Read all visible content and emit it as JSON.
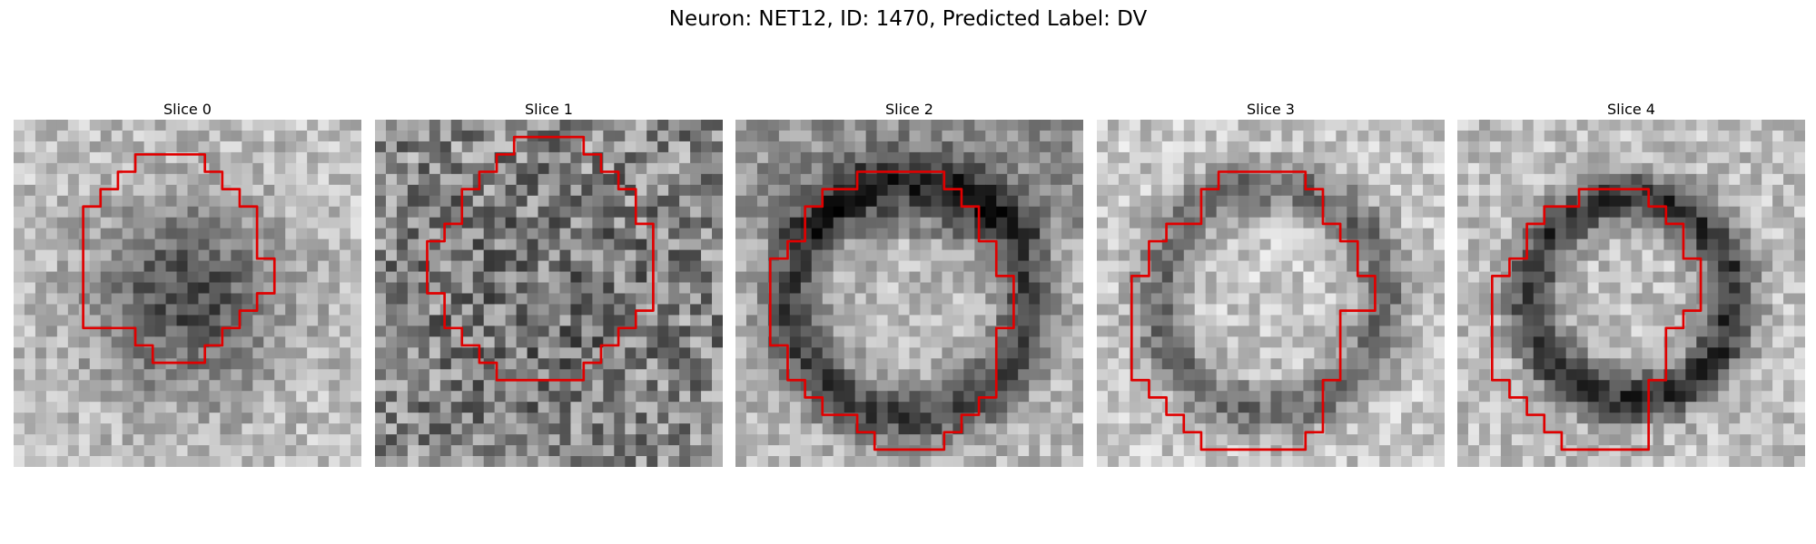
{
  "figure": {
    "title": "Neuron: NET12, ID: 1470, Predicted Label: DV",
    "contour_color": "#e00000",
    "colormap": "gray"
  },
  "panels": [
    {
      "title": "Slice 0",
      "pattern": "dark-center",
      "contour": [
        [
          8,
          2
        ],
        [
          11,
          2
        ],
        [
          11,
          3
        ],
        [
          12,
          3
        ],
        [
          12,
          4
        ],
        [
          13,
          4
        ],
        [
          13,
          5
        ],
        [
          14,
          5
        ],
        [
          14,
          8
        ],
        [
          15,
          8
        ],
        [
          15,
          10
        ],
        [
          14,
          10
        ],
        [
          14,
          11
        ],
        [
          13,
          11
        ],
        [
          13,
          12
        ],
        [
          12,
          12
        ],
        [
          12,
          13
        ],
        [
          11,
          13
        ],
        [
          11,
          14
        ],
        [
          8,
          14
        ],
        [
          8,
          13
        ],
        [
          7,
          13
        ],
        [
          7,
          12
        ],
        [
          4,
          12
        ],
        [
          4,
          5
        ],
        [
          5,
          5
        ],
        [
          5,
          4
        ],
        [
          6,
          4
        ],
        [
          6,
          3
        ],
        [
          7,
          3
        ],
        [
          7,
          2
        ]
      ]
    },
    {
      "title": "Slice 1",
      "pattern": "speckle",
      "contour": [
        [
          8,
          1
        ],
        [
          12,
          1
        ],
        [
          12,
          2
        ],
        [
          13,
          2
        ],
        [
          13,
          3
        ],
        [
          14,
          3
        ],
        [
          14,
          4
        ],
        [
          15,
          4
        ],
        [
          15,
          6
        ],
        [
          16,
          6
        ],
        [
          16,
          11
        ],
        [
          15,
          11
        ],
        [
          15,
          12
        ],
        [
          14,
          12
        ],
        [
          14,
          13
        ],
        [
          13,
          13
        ],
        [
          13,
          14
        ],
        [
          12,
          14
        ],
        [
          12,
          15
        ],
        [
          7,
          15
        ],
        [
          7,
          14
        ],
        [
          6,
          14
        ],
        [
          6,
          13
        ],
        [
          5,
          13
        ],
        [
          5,
          12
        ],
        [
          4,
          12
        ],
        [
          4,
          10
        ],
        [
          3,
          10
        ],
        [
          3,
          7
        ],
        [
          4,
          7
        ],
        [
          4,
          6
        ],
        [
          5,
          6
        ],
        [
          5,
          4
        ],
        [
          6,
          4
        ],
        [
          6,
          3
        ],
        [
          7,
          3
        ],
        [
          7,
          2
        ],
        [
          8,
          2
        ]
      ]
    },
    {
      "title": "Slice 2",
      "pattern": "ring-top",
      "contour": [
        [
          7,
          3
        ],
        [
          12,
          3
        ],
        [
          12,
          4
        ],
        [
          13,
          4
        ],
        [
          13,
          5
        ],
        [
          14,
          5
        ],
        [
          14,
          7
        ],
        [
          15,
          7
        ],
        [
          15,
          9
        ],
        [
          16,
          9
        ],
        [
          16,
          12
        ],
        [
          15,
          12
        ],
        [
          15,
          16
        ],
        [
          14,
          16
        ],
        [
          14,
          17
        ],
        [
          13,
          17
        ],
        [
          13,
          18
        ],
        [
          12,
          18
        ],
        [
          12,
          19
        ],
        [
          8,
          19
        ],
        [
          8,
          18
        ],
        [
          7,
          18
        ],
        [
          7,
          17
        ],
        [
          5,
          17
        ],
        [
          5,
          16
        ],
        [
          4,
          16
        ],
        [
          4,
          15
        ],
        [
          3,
          15
        ],
        [
          3,
          13
        ],
        [
          2,
          13
        ],
        [
          2,
          8
        ],
        [
          3,
          8
        ],
        [
          3,
          7
        ],
        [
          4,
          7
        ],
        [
          4,
          5
        ],
        [
          5,
          5
        ],
        [
          5,
          4
        ],
        [
          7,
          4
        ]
      ]
    },
    {
      "title": "Slice 3",
      "pattern": "ring-light",
      "contour": [
        [
          7,
          3
        ],
        [
          12,
          3
        ],
        [
          12,
          4
        ],
        [
          13,
          4
        ],
        [
          13,
          6
        ],
        [
          14,
          6
        ],
        [
          14,
          7
        ],
        [
          15,
          7
        ],
        [
          15,
          9
        ],
        [
          16,
          9
        ],
        [
          16,
          11
        ],
        [
          14,
          11
        ],
        [
          14,
          15
        ],
        [
          13,
          15
        ],
        [
          13,
          18
        ],
        [
          12,
          18
        ],
        [
          12,
          19
        ],
        [
          6,
          19
        ],
        [
          6,
          18
        ],
        [
          5,
          18
        ],
        [
          5,
          17
        ],
        [
          4,
          17
        ],
        [
          4,
          16
        ],
        [
          3,
          16
        ],
        [
          3,
          15
        ],
        [
          2,
          15
        ],
        [
          2,
          13
        ],
        [
          2,
          9
        ],
        [
          3,
          9
        ],
        [
          3,
          7
        ],
        [
          4,
          7
        ],
        [
          4,
          6
        ],
        [
          6,
          6
        ],
        [
          6,
          4
        ],
        [
          7,
          4
        ]
      ]
    },
    {
      "title": "Slice 4",
      "pattern": "ring-dark",
      "contour": [
        [
          7,
          4
        ],
        [
          11,
          4
        ],
        [
          11,
          5
        ],
        [
          12,
          5
        ],
        [
          12,
          6
        ],
        [
          13,
          6
        ],
        [
          13,
          8
        ],
        [
          14,
          8
        ],
        [
          14,
          11
        ],
        [
          13,
          11
        ],
        [
          13,
          12
        ],
        [
          12,
          12
        ],
        [
          12,
          15
        ],
        [
          11,
          15
        ],
        [
          11,
          19
        ],
        [
          6,
          19
        ],
        [
          6,
          18
        ],
        [
          5,
          18
        ],
        [
          5,
          17
        ],
        [
          4,
          17
        ],
        [
          4,
          16
        ],
        [
          3,
          16
        ],
        [
          3,
          15
        ],
        [
          2,
          15
        ],
        [
          2,
          9
        ],
        [
          3,
          9
        ],
        [
          3,
          8
        ],
        [
          4,
          8
        ],
        [
          4,
          6
        ],
        [
          5,
          6
        ],
        [
          5,
          5
        ],
        [
          7,
          5
        ]
      ]
    }
  ]
}
